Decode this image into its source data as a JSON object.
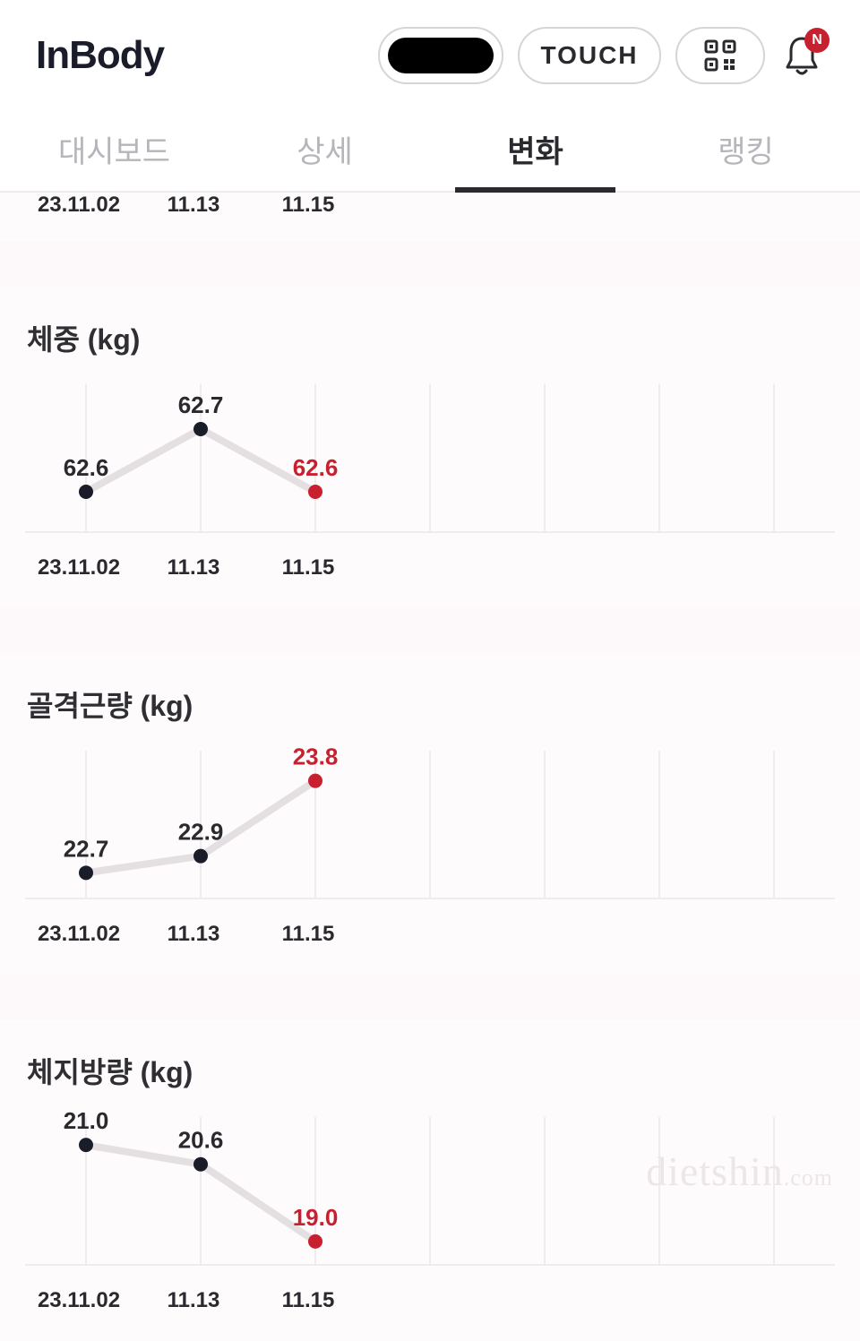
{
  "header": {
    "logo": "InBody",
    "touch_label": "TOUCH",
    "badge_letter": "N"
  },
  "tabs": [
    "대시보드",
    "상세",
    "변화",
    "랭킹"
  ],
  "active_tab_index": 2,
  "top_dates": [
    "23.11.02",
    "11.13",
    "11.15"
  ],
  "colors": {
    "point_normal": "#1a1d29",
    "point_highlight": "#c9202f",
    "line": "#e4e0e2",
    "grid": "#f0ecee",
    "bg": "#fdfbfc",
    "label_highlight": "#c9202f",
    "label_normal": "#2a2a2e"
  },
  "charts": [
    {
      "title": "체중 (kg)",
      "type": "line",
      "dates": [
        "23.11.02",
        "11.13",
        "11.15"
      ],
      "values": [
        62.6,
        62.7,
        62.6
      ],
      "ylim": [
        62.55,
        62.75
      ],
      "labels": [
        "62.6",
        "62.7",
        "62.6"
      ],
      "highlight_index": 2
    },
    {
      "title": "골격근량 (kg)",
      "type": "line",
      "dates": [
        "23.11.02",
        "11.13",
        "11.15"
      ],
      "values": [
        22.7,
        22.9,
        23.8
      ],
      "ylim": [
        22.5,
        24.0
      ],
      "labels": [
        "22.7",
        "22.9",
        "23.8"
      ],
      "highlight_index": 2
    },
    {
      "title": "체지방량 (kg)",
      "type": "line",
      "dates": [
        "23.11.02",
        "11.13",
        "11.15"
      ],
      "values": [
        21.0,
        20.6,
        19.0
      ],
      "ylim": [
        18.7,
        21.3
      ],
      "labels": [
        "21.0",
        "20.6",
        "19.0"
      ],
      "highlight_index": 2
    }
  ],
  "watermark": {
    "main": "dietshin",
    "suffix": ".com"
  }
}
